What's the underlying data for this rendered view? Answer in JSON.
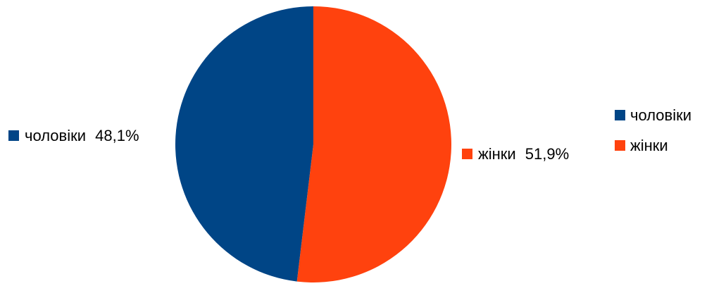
{
  "chart_data": {
    "type": "pie",
    "slices": [
      {
        "label": "чоловіки",
        "value": 48.1,
        "value_label": "48,1%",
        "color": "#004586"
      },
      {
        "label": "жінки",
        "value": 51.9,
        "value_label": "51,9%",
        "color": "#ff420e"
      }
    ],
    "legend": {
      "position": "right",
      "items": [
        "чоловіки",
        "жінки"
      ]
    },
    "start": "top",
    "direction": "clockwise, жінки first"
  }
}
